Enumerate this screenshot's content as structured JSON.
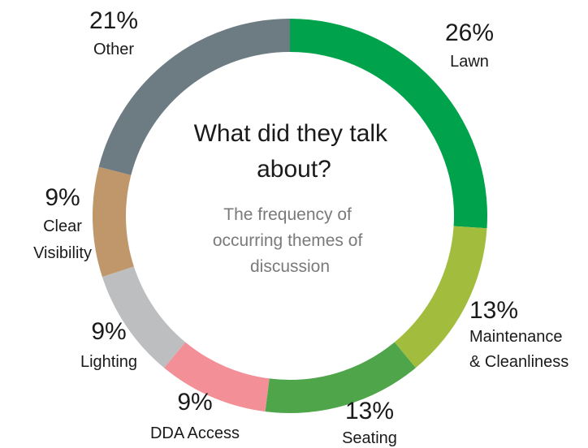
{
  "chart_data": {
    "type": "pie",
    "title": "What did they talk about?",
    "subtitle": "The frequency of occurring themes of discussion",
    "slices": [
      {
        "label": "Lawn",
        "percent": 26,
        "display": "26%",
        "color": "#00a34b"
      },
      {
        "label": "Maintenance & Cleanliness",
        "percent": 13,
        "display": "13%",
        "color": "#a2bd3d"
      },
      {
        "label": "Seating",
        "percent": 13,
        "display": "13%",
        "color": "#4ea54a"
      },
      {
        "label": "DDA Access",
        "percent": 9,
        "display": "9%",
        "color": "#f28f97"
      },
      {
        "label": "Lighting",
        "percent": 9,
        "display": "9%",
        "color": "#bdbebf"
      },
      {
        "label": "Clear Visibility",
        "percent": 9,
        "display": "9%",
        "color": "#c0976a"
      },
      {
        "label": "Other",
        "percent": 21,
        "display": "21%",
        "color": "#6d7b83"
      }
    ]
  }
}
